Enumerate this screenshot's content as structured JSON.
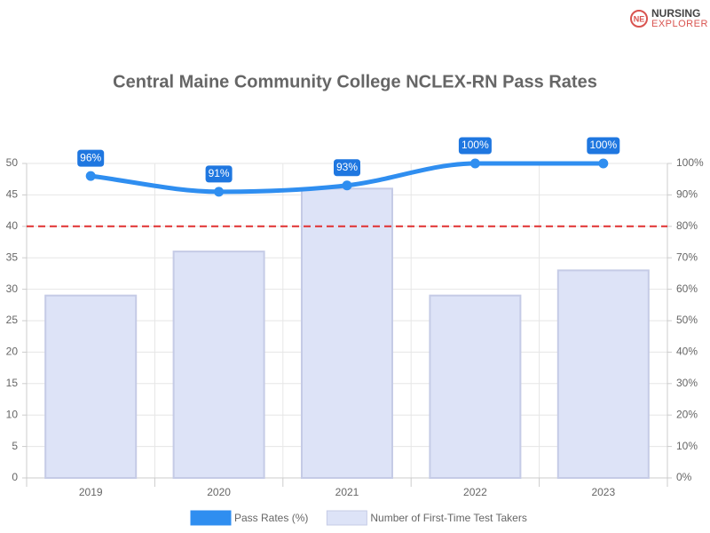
{
  "brand": [
    "NURSING",
    "EXPLORER"
  ],
  "chart_data": {
    "type": "bar-line",
    "title": "Central Maine Community College NCLEX-RN Pass Rates",
    "categories": [
      "2019",
      "2020",
      "2021",
      "2022",
      "2023"
    ],
    "series": [
      {
        "name": "Pass Rates (%)",
        "type": "line",
        "axis": "y2",
        "color": "#2f8ef0",
        "values": [
          96,
          91,
          93,
          100,
          100
        ],
        "value_labels": [
          "96%",
          "91%",
          "93%",
          "100%",
          "100%"
        ]
      },
      {
        "name": "Number of First-Time Test Takers",
        "type": "bar",
        "axis": "y",
        "color": "#dde3f7",
        "values": [
          29,
          36,
          46,
          29,
          33
        ]
      }
    ],
    "ylim": [
      0,
      50
    ],
    "yticks": [
      0,
      5,
      10,
      15,
      20,
      25,
      30,
      35,
      40,
      45,
      50
    ],
    "y2lim": [
      0,
      100
    ],
    "y2ticks": [
      {
        "value": 0,
        "label": "0%"
      },
      {
        "value": 10,
        "label": "10%"
      },
      {
        "value": 20,
        "label": "20%"
      },
      {
        "value": 30,
        "label": "30%"
      },
      {
        "value": 40,
        "label": "40%"
      },
      {
        "value": 50,
        "label": "50%"
      },
      {
        "value": 60,
        "label": "60%"
      },
      {
        "value": 70,
        "label": "70%"
      },
      {
        "value": 80,
        "label": "80%"
      },
      {
        "value": 90,
        "label": "90%"
      },
      {
        "value": 100,
        "label": "100%"
      }
    ],
    "reference_line": {
      "axis": "y2",
      "value": 80,
      "color": "#e03030"
    },
    "grid": true
  }
}
